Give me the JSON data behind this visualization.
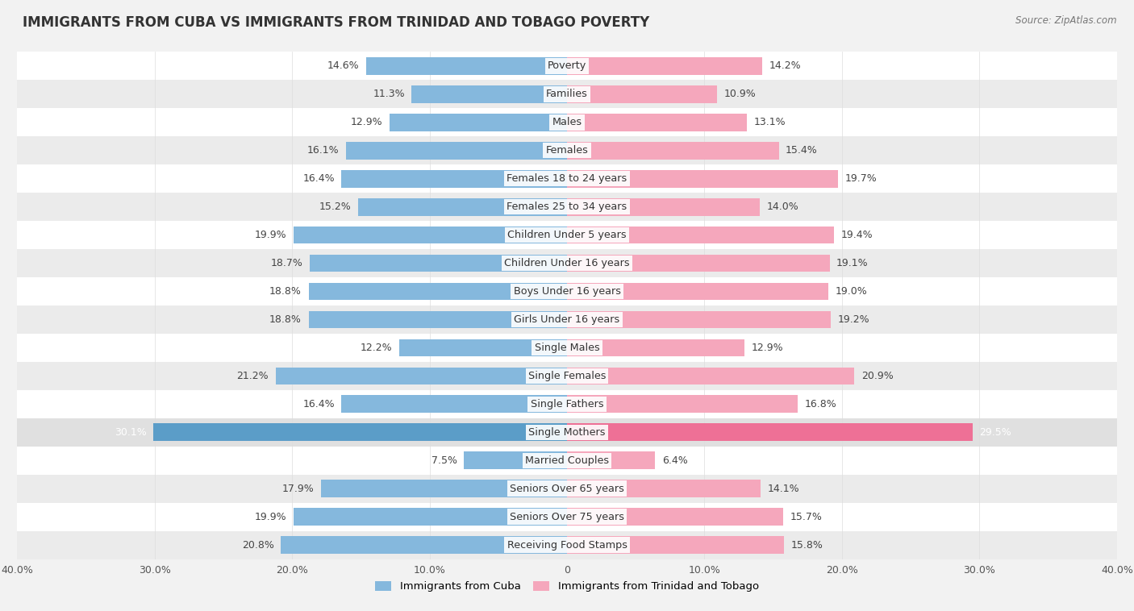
{
  "title": "IMMIGRANTS FROM CUBA VS IMMIGRANTS FROM TRINIDAD AND TOBAGO POVERTY",
  "source": "Source: ZipAtlas.com",
  "categories": [
    "Poverty",
    "Families",
    "Males",
    "Females",
    "Females 18 to 24 years",
    "Females 25 to 34 years",
    "Children Under 5 years",
    "Children Under 16 years",
    "Boys Under 16 years",
    "Girls Under 16 years",
    "Single Males",
    "Single Females",
    "Single Fathers",
    "Single Mothers",
    "Married Couples",
    "Seniors Over 65 years",
    "Seniors Over 75 years",
    "Receiving Food Stamps"
  ],
  "cuba_values": [
    14.6,
    11.3,
    12.9,
    16.1,
    16.4,
    15.2,
    19.9,
    18.7,
    18.8,
    18.8,
    12.2,
    21.2,
    16.4,
    30.1,
    7.5,
    17.9,
    19.9,
    20.8
  ],
  "tt_values": [
    14.2,
    10.9,
    13.1,
    15.4,
    19.7,
    14.0,
    19.4,
    19.1,
    19.0,
    19.2,
    12.9,
    20.9,
    16.8,
    29.5,
    6.4,
    14.1,
    15.7,
    15.8
  ],
  "cuba_color": "#85b8dd",
  "tt_color": "#f5a7bc",
  "cuba_highlight_color": "#5b9dc8",
  "tt_highlight_color": "#ee7096",
  "axis_max": 40.0,
  "bar_height": 0.62,
  "background_color": "#f2f2f2",
  "label_fontsize": 9.2,
  "value_fontsize": 9.0,
  "title_fontsize": 12,
  "legend_label_cuba": "Immigrants from Cuba",
  "legend_label_tt": "Immigrants from Trinidad and Tobago"
}
